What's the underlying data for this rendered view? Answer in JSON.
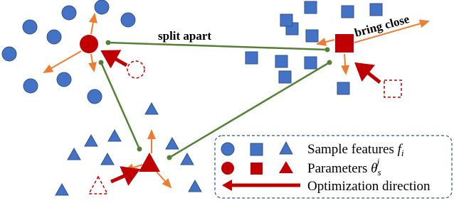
{
  "annotations": {
    "split": "split apart",
    "bring": "bring close"
  },
  "legend": [
    {
      "text": "Sample features",
      "symbol": "f",
      "sub": "i"
    },
    {
      "text": "Parameters",
      "symbol": "θ",
      "sub": "s",
      "sup": "j"
    },
    {
      "text": "Optimization direction"
    }
  ]
}
